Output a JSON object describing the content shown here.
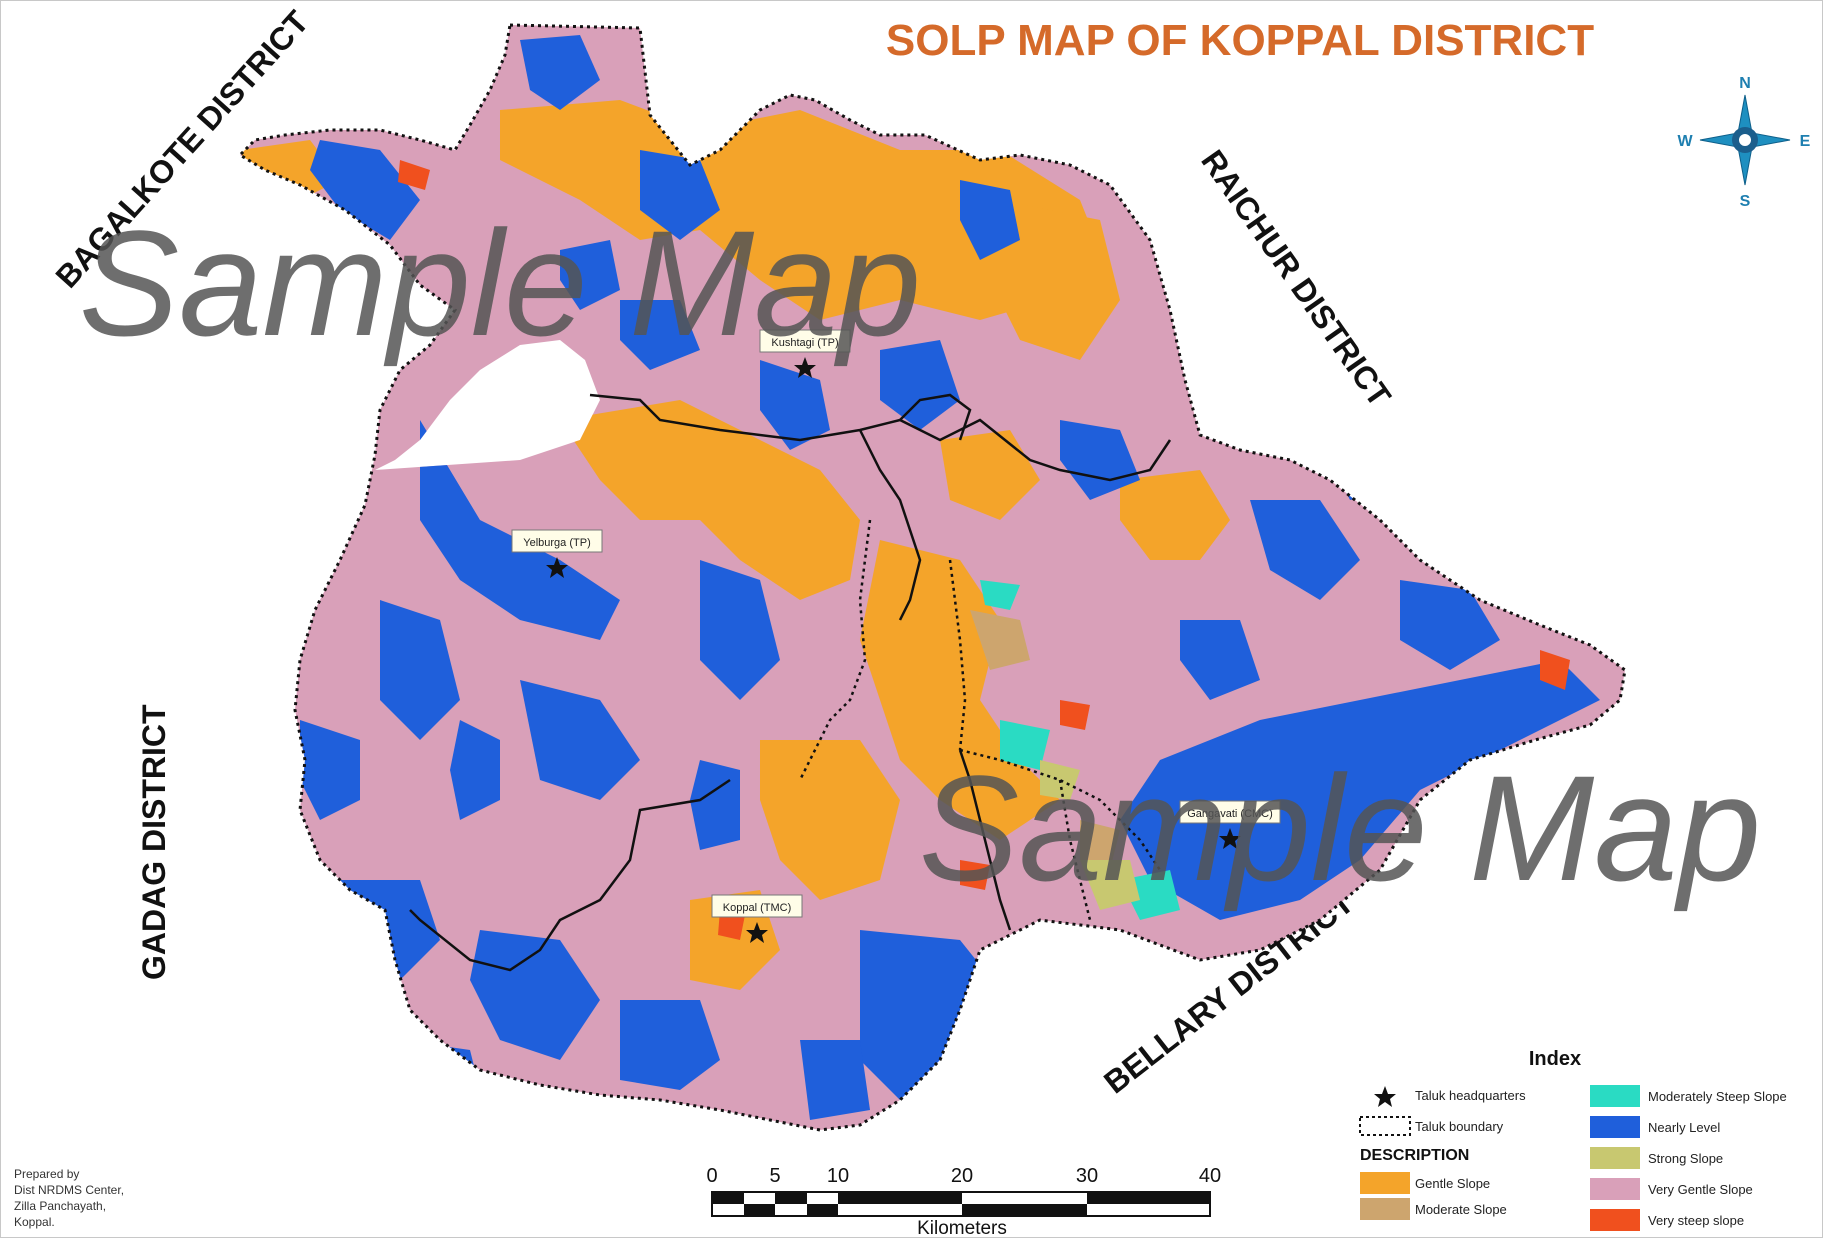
{
  "title": "SOLP  MAP OF KOPPAL DISTRICT",
  "neighbours": {
    "north_west": "BAGALKOTE DISTRICT",
    "north_east": "RAICHUR DISTRICT",
    "west": "GADAG DISTRICT",
    "south_east": "BELLARY DISTRICT"
  },
  "watermark": "Sample Map",
  "towns": [
    {
      "label": "Kushtagi (TP)"
    },
    {
      "label": "Yelburga (TP)"
    },
    {
      "label": "Koppal (TMC)"
    },
    {
      "label": "Gangavati (CMC)"
    }
  ],
  "compass": {
    "n": "N",
    "s": "S",
    "e": "E",
    "w": "W"
  },
  "legend": {
    "title": "Index",
    "symbols": [
      {
        "label": "Taluk headquarters",
        "icon": "star"
      },
      {
        "label": "Taluk boundary",
        "icon": "dotted-line"
      }
    ],
    "description_heading": "DESCRIPTION",
    "classes": [
      {
        "label": "Gentle Slope",
        "color": "#F4A42A"
      },
      {
        "label": "Moderate Slope",
        "color": "#CDA56E"
      },
      {
        "label": "Moderately Steep Slope",
        "color": "#2ADBC3"
      },
      {
        "label": "Nearly Level",
        "color": "#1F5FDB"
      },
      {
        "label": "Strong Slope",
        "color": "#C8C870"
      },
      {
        "label": "Very Gentle Slope",
        "color": "#D9A0B9"
      },
      {
        "label": "Very steep slope",
        "color": "#F0501E"
      }
    ]
  },
  "scale_bar": {
    "ticks": [
      "0",
      "5",
      "10",
      "20",
      "30",
      "40"
    ],
    "unit": "Kilometers"
  },
  "credits": [
    "Prepared by",
    "Dist NRDMS Center,",
    "Zilla Panchayath,",
    "Koppal."
  ]
}
